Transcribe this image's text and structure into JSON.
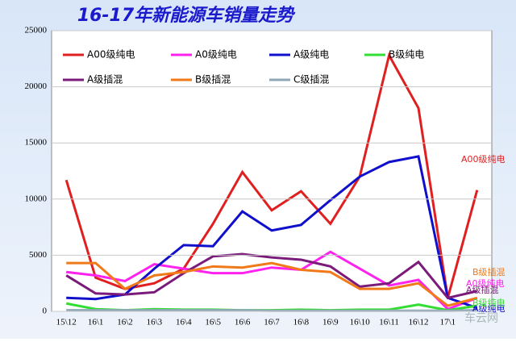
{
  "chart_data": {
    "type": "line",
    "title": "16-17年新能源车销量走势",
    "categories": [
      "15\\12",
      "16\\1",
      "16\\2",
      "16\\3",
      "16\\4",
      "16\\5",
      "16\\6",
      "16\\7",
      "16\\8",
      "16\\9",
      "16\\10",
      "16\\11",
      "16\\12",
      "17\\1",
      null
    ],
    "series": [
      {
        "name": "A00级纯电",
        "color": "#e02020",
        "values": [
          11700,
          3000,
          2000,
          2500,
          3800,
          7800,
          12400,
          9000,
          10700,
          7800,
          12000,
          22800,
          18100,
          1200,
          10800
        ]
      },
      {
        "name": "A0级纯电",
        "color": "#ff22ee",
        "values": [
          3500,
          3200,
          2700,
          4200,
          3800,
          3400,
          3400,
          3900,
          3700,
          5300,
          3800,
          2300,
          2800,
          200,
          1200
        ]
      },
      {
        "name": "A级纯电",
        "color": "#1010cc",
        "values": [
          1200,
          1100,
          1500,
          3800,
          5900,
          5800,
          8900,
          7200,
          7700,
          9900,
          12000,
          13300,
          13800,
          1200,
          300
        ]
      },
      {
        "name": "B级纯电",
        "color": "#33dd33",
        "values": [
          700,
          200,
          100,
          200,
          150,
          150,
          100,
          100,
          150,
          100,
          150,
          150,
          600,
          100,
          500
        ]
      },
      {
        "name": "A级插混",
        "color": "#7a1a7a",
        "values": [
          3200,
          1600,
          1500,
          1700,
          3400,
          4900,
          5100,
          4800,
          4600,
          4000,
          2200,
          2500,
          4400,
          1200,
          1800
        ]
      },
      {
        "name": "B级插混",
        "color": "#f07a1a",
        "values": [
          4300,
          4300,
          2000,
          3200,
          3500,
          4000,
          3900,
          4300,
          3700,
          3500,
          2000,
          2000,
          2500,
          500,
          1200
        ]
      },
      {
        "name": "C级插混",
        "color": "#8fa8b8",
        "values": [
          100,
          100,
          100,
          100,
          100,
          100,
          100,
          50,
          50,
          50,
          50,
          50,
          50,
          50,
          100
        ]
      }
    ],
    "ylim": [
      0,
      25000
    ],
    "yticks": [
      0,
      5000,
      10000,
      15000,
      20000,
      25000
    ],
    "grid": true,
    "watermark": "车云网"
  }
}
